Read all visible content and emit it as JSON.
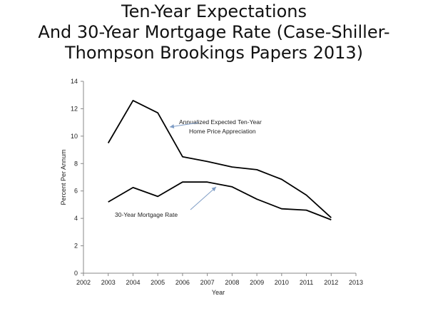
{
  "title": {
    "line1": "Ten-Year Expectations",
    "line2": "And 30-Year Mortgage Rate (Case-Shiller-",
    "line3": "Thompson Brookings Papers 2013)"
  },
  "chart_data": {
    "type": "line",
    "xlabel": "Year",
    "ylabel": "Percent Per Annum",
    "xlim": [
      2002,
      2013
    ],
    "ylim": [
      0,
      14
    ],
    "xticks": [
      2002,
      2003,
      2004,
      2005,
      2006,
      2007,
      2008,
      2009,
      2010,
      2011,
      2012,
      2013
    ],
    "yticks": [
      0,
      2,
      4,
      6,
      8,
      10,
      12,
      14
    ],
    "grid": false,
    "series": [
      {
        "name": "Annualized Expected Ten-Year Home Price Appreciation",
        "x": [
          2003,
          2004,
          2005,
          2006,
          2007,
          2008,
          2009,
          2010,
          2011,
          2012
        ],
        "values": [
          9.5,
          12.6,
          11.7,
          8.5,
          8.15,
          7.75,
          7.55,
          6.85,
          5.7,
          4.05
        ]
      },
      {
        "name": "30-Year Mortgage Rate",
        "x": [
          2003,
          2004,
          2005,
          2006,
          2007,
          2008,
          2009,
          2010,
          2011,
          2012
        ],
        "values": [
          5.2,
          6.25,
          5.6,
          6.65,
          6.65,
          6.3,
          5.4,
          4.7,
          4.6,
          3.9
        ]
      }
    ],
    "annotations": [
      {
        "series": 0,
        "line1": "Annualized   Expected Ten-Year",
        "line2": "Home  Price  Appreciation"
      },
      {
        "series": 1,
        "line1": "30-Year Mortgage Rate",
        "line2": ""
      }
    ],
    "colors": {
      "line": "#000000",
      "axis": "#888888",
      "arrow": "#7f9dc6"
    }
  }
}
